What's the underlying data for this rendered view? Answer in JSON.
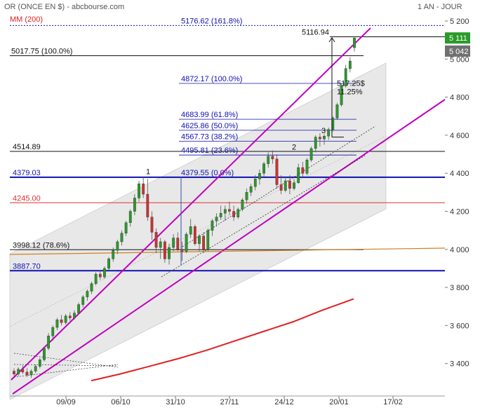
{
  "header": {
    "instrument": "OR (ONCE EN $) - abcbourse.com",
    "period": "1 AN - JOUR",
    "ma_label": "MM (200)"
  },
  "colors": {
    "up_candle": "#2a9a2a",
    "down_candle": "#d03030",
    "channel": "#c000c0",
    "blue_level": "#1010b0",
    "red_level": "#e03030",
    "ma": "#e02020",
    "orange_line": "#d08020",
    "price_badge": "#2a9a2a",
    "price_badge2": "#707070"
  },
  "chart_data": {
    "type": "candlestick",
    "title": "OR (ONCE EN $) - abcbourse.com",
    "period": "1 AN - JOUR",
    "ylim": [
      3270,
      5280
    ],
    "y_ticks": [
      "5 200",
      "5 000",
      "4 800",
      "4 600",
      "4 400",
      "4 200",
      "4 000",
      "3 800",
      "3 600",
      "3 400"
    ],
    "y_tick_values": [
      5200,
      5000,
      4800,
      4600,
      4400,
      4200,
      4000,
      3800,
      3600,
      3400
    ],
    "x_ticks": [
      "09/09",
      "06/10",
      "31/10",
      "27/11",
      "24/12",
      "20/01",
      "17/02"
    ],
    "last_price_label": "5 111",
    "secondary_price_label": "5 042",
    "levels": [
      {
        "label": "5176.62  (161.8%)",
        "value": 5176.62,
        "style": "fib"
      },
      {
        "label": "5116.94",
        "value": 5116.94,
        "style": "high"
      },
      {
        "label": "5017.75  (100.0%)",
        "value": 5017.75,
        "style": "fib-black"
      },
      {
        "label": "4872.17  (100.0%)",
        "value": 4872.17,
        "style": "fib"
      },
      {
        "label": "4683.99  (61.8%)",
        "value": 4683.99,
        "style": "fib"
      },
      {
        "label": "4625.86  (50.0%)",
        "value": 4625.86,
        "style": "fib"
      },
      {
        "label": "4567.73  (38.2%)",
        "value": 4567.73,
        "style": "fib"
      },
      {
        "label": "4514.89",
        "value": 4514.89,
        "style": "black"
      },
      {
        "label": "4495.81  (23.6%)",
        "value": 4495.81,
        "style": "fib"
      },
      {
        "label": "4379.03",
        "value": 4379.03,
        "style": "blue"
      },
      {
        "label": "4379.55  (0.0%)",
        "value": 4379.55,
        "style": "fib"
      },
      {
        "label": "4245.00",
        "value": 4245,
        "style": "red"
      },
      {
        "label": "3998.12  (78.6%)",
        "value": 3998.12,
        "style": "black"
      },
      {
        "label": "3887.70",
        "value": 3887.7,
        "style": "blue"
      }
    ],
    "annotations": {
      "gain_value": "517.25$",
      "gain_pct": "11.25%",
      "wave_labels": [
        "1",
        "2",
        "3"
      ]
    },
    "candles": [
      {
        "o": 3360,
        "h": 3375,
        "l": 3335,
        "c": 3345
      },
      {
        "o": 3345,
        "h": 3380,
        "l": 3335,
        "c": 3370
      },
      {
        "o": 3370,
        "h": 3390,
        "l": 3345,
        "c": 3355
      },
      {
        "o": 3355,
        "h": 3375,
        "l": 3330,
        "c": 3340
      },
      {
        "o": 3340,
        "h": 3370,
        "l": 3325,
        "c": 3360
      },
      {
        "o": 3360,
        "h": 3395,
        "l": 3350,
        "c": 3385
      },
      {
        "o": 3385,
        "h": 3430,
        "l": 3375,
        "c": 3420
      },
      {
        "o": 3420,
        "h": 3490,
        "l": 3410,
        "c": 3480
      },
      {
        "o": 3480,
        "h": 3560,
        "l": 3470,
        "c": 3545
      },
      {
        "o": 3545,
        "h": 3600,
        "l": 3520,
        "c": 3590
      },
      {
        "o": 3590,
        "h": 3640,
        "l": 3575,
        "c": 3630
      },
      {
        "o": 3630,
        "h": 3655,
        "l": 3600,
        "c": 3615
      },
      {
        "o": 3615,
        "h": 3660,
        "l": 3605,
        "c": 3650
      },
      {
        "o": 3650,
        "h": 3670,
        "l": 3625,
        "c": 3640
      },
      {
        "o": 3640,
        "h": 3680,
        "l": 3630,
        "c": 3665
      },
      {
        "o": 3665,
        "h": 3720,
        "l": 3660,
        "c": 3710
      },
      {
        "o": 3710,
        "h": 3760,
        "l": 3695,
        "c": 3750
      },
      {
        "o": 3750,
        "h": 3790,
        "l": 3730,
        "c": 3780
      },
      {
        "o": 3780,
        "h": 3830,
        "l": 3765,
        "c": 3820
      },
      {
        "o": 3820,
        "h": 3880,
        "l": 3810,
        "c": 3870
      },
      {
        "o": 3870,
        "h": 3890,
        "l": 3840,
        "c": 3855
      },
      {
        "o": 3855,
        "h": 3910,
        "l": 3845,
        "c": 3900
      },
      {
        "o": 3900,
        "h": 3960,
        "l": 3890,
        "c": 3950
      },
      {
        "o": 3950,
        "h": 4010,
        "l": 3935,
        "c": 3995
      },
      {
        "o": 3995,
        "h": 4050,
        "l": 3975,
        "c": 4040
      },
      {
        "o": 4040,
        "h": 4100,
        "l": 4020,
        "c": 4085
      },
      {
        "o": 4085,
        "h": 4150,
        "l": 4070,
        "c": 4140
      },
      {
        "o": 4140,
        "h": 4210,
        "l": 4120,
        "c": 4200
      },
      {
        "o": 4200,
        "h": 4290,
        "l": 4180,
        "c": 4270
      },
      {
        "o": 4270,
        "h": 4360,
        "l": 4250,
        "c": 4345
      },
      {
        "o": 4345,
        "h": 4381,
        "l": 4270,
        "c": 4290
      },
      {
        "o": 4290,
        "h": 4370,
        "l": 4150,
        "c": 4170
      },
      {
        "o": 4170,
        "h": 4200,
        "l": 4050,
        "c": 4090
      },
      {
        "o": 4090,
        "h": 4110,
        "l": 3980,
        "c": 4010
      },
      {
        "o": 4010,
        "h": 4060,
        "l": 3950,
        "c": 4040
      },
      {
        "o": 4040,
        "h": 4050,
        "l": 3930,
        "c": 3950
      },
      {
        "o": 3950,
        "h": 4030,
        "l": 3920,
        "c": 4010
      },
      {
        "o": 4010,
        "h": 4080,
        "l": 3990,
        "c": 4060
      },
      {
        "o": 4060,
        "h": 4090,
        "l": 3990,
        "c": 4000
      },
      {
        "o": 4000,
        "h": 4040,
        "l": 3940,
        "c": 3990
      },
      {
        "o": 3990,
        "h": 4090,
        "l": 3980,
        "c": 4080
      },
      {
        "o": 4080,
        "h": 4160,
        "l": 4060,
        "c": 4120
      },
      {
        "o": 4120,
        "h": 4130,
        "l": 4020,
        "c": 4030
      },
      {
        "o": 4030,
        "h": 4080,
        "l": 3990,
        "c": 4070
      },
      {
        "o": 4070,
        "h": 4090,
        "l": 3980,
        "c": 4000
      },
      {
        "o": 4000,
        "h": 4110,
        "l": 3990,
        "c": 4100
      },
      {
        "o": 4100,
        "h": 4160,
        "l": 4070,
        "c": 4150
      },
      {
        "o": 4150,
        "h": 4190,
        "l": 4120,
        "c": 4170
      },
      {
        "o": 4170,
        "h": 4230,
        "l": 4155,
        "c": 4190
      },
      {
        "o": 4190,
        "h": 4230,
        "l": 4150,
        "c": 4210
      },
      {
        "o": 4210,
        "h": 4250,
        "l": 4180,
        "c": 4200
      },
      {
        "o": 4200,
        "h": 4230,
        "l": 4150,
        "c": 4170
      },
      {
        "o": 4170,
        "h": 4220,
        "l": 4160,
        "c": 4210
      },
      {
        "o": 4210,
        "h": 4270,
        "l": 4200,
        "c": 4260
      },
      {
        "o": 4260,
        "h": 4320,
        "l": 4240,
        "c": 4300
      },
      {
        "o": 4300,
        "h": 4345,
        "l": 4280,
        "c": 4330
      },
      {
        "o": 4330,
        "h": 4390,
        "l": 4310,
        "c": 4370
      },
      {
        "o": 4370,
        "h": 4420,
        "l": 4340,
        "c": 4400
      },
      {
        "o": 4400,
        "h": 4460,
        "l": 4380,
        "c": 4450
      },
      {
        "o": 4450,
        "h": 4510,
        "l": 4430,
        "c": 4490
      },
      {
        "o": 4490,
        "h": 4520,
        "l": 4450,
        "c": 4475
      },
      {
        "o": 4475,
        "h": 4500,
        "l": 4320,
        "c": 4340
      },
      {
        "o": 4340,
        "h": 4390,
        "l": 4290,
        "c": 4310
      },
      {
        "o": 4310,
        "h": 4380,
        "l": 4300,
        "c": 4360
      },
      {
        "o": 4360,
        "h": 4390,
        "l": 4290,
        "c": 4320
      },
      {
        "o": 4320,
        "h": 4370,
        "l": 4310,
        "c": 4350
      },
      {
        "o": 4350,
        "h": 4450,
        "l": 4345,
        "c": 4430
      },
      {
        "o": 4430,
        "h": 4460,
        "l": 4380,
        "c": 4400
      },
      {
        "o": 4400,
        "h": 4480,
        "l": 4390,
        "c": 4470
      },
      {
        "o": 4470,
        "h": 4540,
        "l": 4460,
        "c": 4530
      },
      {
        "o": 4530,
        "h": 4600,
        "l": 4510,
        "c": 4590
      },
      {
        "o": 4590,
        "h": 4610,
        "l": 4540,
        "c": 4580
      },
      {
        "o": 4580,
        "h": 4605,
        "l": 4550,
        "c": 4595
      },
      {
        "o": 4595,
        "h": 4640,
        "l": 4575,
        "c": 4630
      },
      {
        "o": 4630,
        "h": 4700,
        "l": 4620,
        "c": 4690
      },
      {
        "o": 4690,
        "h": 4770,
        "l": 4680,
        "c": 4760
      },
      {
        "o": 4760,
        "h": 4870,
        "l": 4750,
        "c": 4860
      },
      {
        "o": 4860,
        "h": 4970,
        "l": 4850,
        "c": 4950
      },
      {
        "o": 4950,
        "h": 5010,
        "l": 4930,
        "c": 4990
      },
      {
        "o": 5060,
        "h": 5117,
        "l": 5040,
        "c": 5111
      }
    ],
    "moving_average_200": [
      3310,
      3345,
      3385,
      3425,
      3470,
      3520,
      3570,
      3620,
      3680,
      3740
    ],
    "moving_average_x_fraction": [
      0,
      0.11,
      0.22,
      0.33,
      0.44,
      0.55,
      0.66,
      0.77,
      0.88,
      1
    ]
  }
}
